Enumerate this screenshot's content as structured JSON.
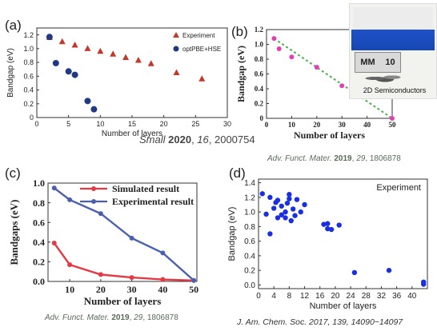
{
  "panels": {
    "a": {
      "label": "(a)",
      "citation": {
        "journal": "Small",
        "year": "2020",
        "volume": "16",
        "pages": ", 2000754",
        "sep1": " ",
        "sep2": ", "
      }
    },
    "b": {
      "label": "(b)",
      "citation": {
        "journal": "Adv. Funct. Mater.",
        "year": "2019",
        "volume": "29",
        "pages": ", 1806878",
        "sep1": " ",
        "sep2": ", "
      },
      "photo": {
        "ruler_text": "MM",
        "ruler_num": "10",
        "caption": "2D Semiconductors"
      }
    },
    "c": {
      "label": "(c)",
      "citation": {
        "journal": "Adv. Funct. Mater.",
        "year": "2019",
        "volume": "29",
        "pages": ", 1806878",
        "sep1": " ",
        "sep2": ", "
      }
    },
    "d": {
      "label": "(d)",
      "citation": {
        "text": "J. Am. Chem. Soc. 2017, 139, 14090−14097"
      }
    }
  },
  "chart_data": [
    {
      "panel": "a",
      "type": "scatter",
      "xlabel": "Number of layers",
      "ylabel": "Bandgap (eV)",
      "xlim": [
        0,
        30
      ],
      "ylim": [
        0,
        1.3
      ],
      "xticks": [
        0,
        5,
        10,
        15,
        20,
        25,
        30
      ],
      "yticks": [
        0,
        0.2,
        0.4,
        0.6,
        0.8,
        1.0,
        1.2
      ],
      "ytick_labels": [
        "0",
        "0.2",
        "0.4",
        "0.6",
        "0.8",
        "1.0",
        "1.2"
      ],
      "legend": "top-right",
      "series": [
        {
          "name": "Experiment",
          "color": "#c0392b",
          "marker": "triangle",
          "x": [
            2,
            4,
            6,
            8,
            10,
            12,
            14,
            16,
            18,
            22,
            26
          ],
          "y": [
            1.16,
            1.1,
            1.05,
            1.0,
            0.96,
            0.92,
            0.87,
            0.83,
            0.78,
            0.65,
            0.56
          ]
        },
        {
          "name": "optPBE+HSE",
          "color": "#1f3a80",
          "marker": "circle",
          "x": [
            2,
            3,
            5,
            6,
            8,
            9
          ],
          "y": [
            1.17,
            0.79,
            0.67,
            0.62,
            0.24,
            0.12
          ]
        }
      ]
    },
    {
      "panel": "b",
      "type": "scatter",
      "xlabel": "Number of layers",
      "ylabel": "Bandgap (eV)",
      "xlim": [
        0,
        50
      ],
      "ylim": [
        0,
        1.2
      ],
      "xticks": [
        0,
        10,
        20,
        30,
        40,
        50
      ],
      "yticks": [
        0,
        0.2,
        0.4,
        0.6,
        0.8,
        1.0,
        1.2
      ],
      "ytick_labels": [
        "0",
        "0.2",
        "0.4",
        "0.6",
        "0.8",
        "1.0",
        "1.2"
      ],
      "series": [
        {
          "color": "#e040b0",
          "marker": "circle",
          "x": [
            3,
            5,
            10,
            20,
            30,
            40,
            50
          ],
          "y": [
            1.08,
            0.94,
            0.83,
            0.69,
            0.44,
            0.29,
            0.0
          ]
        }
      ],
      "fit_line": {
        "color": "#4caf50",
        "x": [
          3,
          50
        ],
        "y": [
          1.08,
          0.0
        ]
      }
    },
    {
      "panel": "c",
      "type": "line",
      "xlabel": "Number of layers",
      "ylabel": "Bandgaps (eV)",
      "xlim": [
        3,
        51
      ],
      "ylim": [
        0,
        1.0
      ],
      "xticks": [
        10,
        20,
        30,
        40,
        50
      ],
      "yticks": [
        0,
        0.2,
        0.4,
        0.6,
        0.8,
        1.0
      ],
      "ytick_labels": [
        "0.0",
        "0.2",
        "0.4",
        "0.6",
        "0.8",
        "1.0"
      ],
      "legend": "top-right",
      "series": [
        {
          "name": "Simulated result",
          "color": "#e53945",
          "x": [
            5,
            10,
            20,
            30,
            40,
            50
          ],
          "y": [
            0.39,
            0.17,
            0.07,
            0.04,
            0.02,
            0.01
          ]
        },
        {
          "name": "Experimental result",
          "color": "#4a5fb0",
          "x": [
            5,
            10,
            20,
            30,
            40,
            50
          ],
          "y": [
            0.95,
            0.83,
            0.69,
            0.44,
            0.29,
            0.01
          ]
        }
      ]
    },
    {
      "panel": "d",
      "type": "scatter",
      "xlabel": "Number of layers",
      "ylabel": "Bandgap (eV)",
      "xlim": [
        0,
        44
      ],
      "ylim": [
        -0.05,
        1.45
      ],
      "xticks": [
        0,
        4,
        8,
        12,
        16,
        20,
        24,
        28,
        32,
        36,
        40
      ],
      "yticks": [
        0,
        0.2,
        0.4,
        0.6,
        0.8,
        1.0,
        1.2,
        1.4
      ],
      "ytick_labels": [
        "0.0",
        "0.2",
        "0.4",
        "0.6",
        "0.8",
        "1.0",
        "1.2",
        "1.4"
      ],
      "annotation": "Experiment",
      "series": [
        {
          "color": "#1a2fe0",
          "marker": "circle",
          "x": [
            1,
            2,
            3,
            3,
            4,
            4.5,
            5,
            5,
            6,
            6,
            7,
            7,
            7.5,
            8,
            8,
            8.5,
            9,
            9.5,
            10,
            11,
            12,
            17,
            18,
            18,
            19,
            21,
            25,
            34,
            43,
            43
          ],
          "y": [
            1.25,
            0.97,
            1.2,
            0.7,
            1.05,
            1.13,
            0.92,
            1.16,
            0.96,
            1.08,
            1.0,
            0.92,
            1.12,
            1.24,
            1.18,
            0.88,
            1.04,
            0.95,
            1.17,
            1.0,
            1.1,
            0.83,
            0.77,
            0.84,
            0.76,
            0.82,
            0.17,
            0.2,
            0.01,
            0.04
          ]
        }
      ]
    }
  ]
}
